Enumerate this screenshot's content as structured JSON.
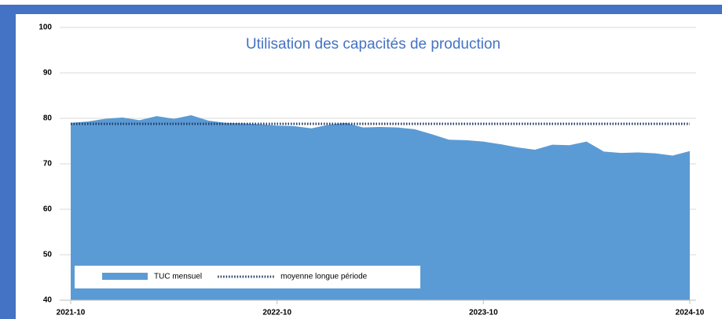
{
  "chart_data": {
    "type": "area",
    "title": "Utilisation des capacités de production",
    "categories": [
      "2021-10",
      null,
      null,
      null,
      null,
      null,
      null,
      null,
      null,
      null,
      null,
      null,
      "2022-10",
      null,
      null,
      null,
      null,
      null,
      null,
      null,
      null,
      null,
      null,
      null,
      "2023-10",
      null,
      null,
      null,
      null,
      null,
      null,
      null,
      null,
      null,
      null,
      null,
      "2024-10"
    ],
    "series": [
      {
        "name": "TUC mensuel",
        "color": "#5b9bd5",
        "kind": "area",
        "values": [
          79,
          79.3,
          79.9,
          80.2,
          79.6,
          80.5,
          79.9,
          80.7,
          79.5,
          79.0,
          78.9,
          78.7,
          78.4,
          78.3,
          77.8,
          78.6,
          79.0,
          78.0,
          78.1,
          78.0,
          77.6,
          76.5,
          75.3,
          75.2,
          74.9,
          74.3,
          73.6,
          73.1,
          74.2,
          74.1,
          74.9,
          72.7,
          72.4,
          72.5,
          72.3,
          71.8,
          72.8
        ]
      },
      {
        "name": "moyenne longue période",
        "color": "#1f3864",
        "kind": "line",
        "values": [
          78.8,
          78.8,
          78.8,
          78.8,
          78.8,
          78.8,
          78.8,
          78.8,
          78.8,
          78.8,
          78.8,
          78.8,
          78.8,
          78.8,
          78.8,
          78.8,
          78.8,
          78.8,
          78.8,
          78.8,
          78.8,
          78.8,
          78.8,
          78.8,
          78.8,
          78.8,
          78.8,
          78.8,
          78.8,
          78.8,
          78.8,
          78.8,
          78.8,
          78.8,
          78.8,
          78.8,
          78.8
        ]
      }
    ],
    "ylim": [
      40,
      100
    ],
    "yticks": [
      40,
      50,
      60,
      70,
      80,
      90,
      100
    ],
    "grid": true
  }
}
